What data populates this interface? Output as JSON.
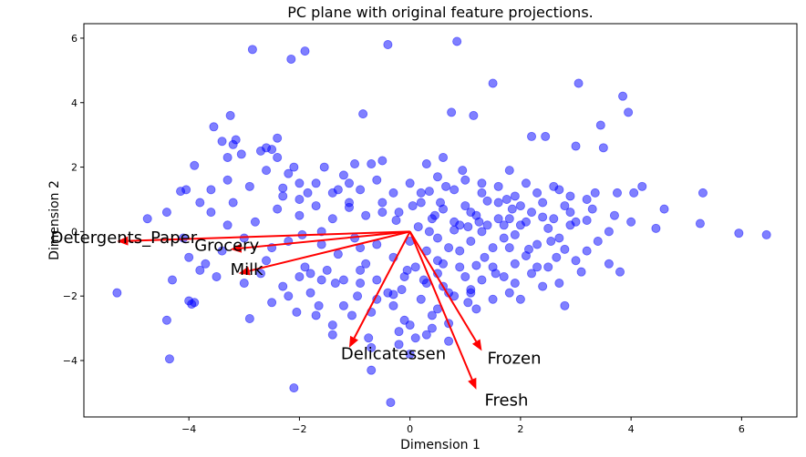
{
  "chart_data": {
    "type": "scatter",
    "title": "PC plane with original feature projections.",
    "xlabel": "Dimension 1",
    "ylabel": "Dimension 2",
    "xlim": [
      -5.9,
      7.0
    ],
    "ylim": [
      -5.75,
      6.45
    ],
    "xticks": [
      -4,
      -2,
      0,
      2,
      4,
      6
    ],
    "yticks": [
      -4,
      -2,
      0,
      2,
      4,
      6
    ],
    "grid": false,
    "legend": "none",
    "point_color": "#0000ff",
    "arrow_color": "#ff0000",
    "points": [
      [
        -5.3,
        -1.9
      ],
      [
        -4.4,
        -2.75
      ],
      [
        -4.35,
        -3.95
      ],
      [
        -4.3,
        -1.5
      ],
      [
        -4.15,
        1.25
      ],
      [
        -4.05,
        1.3
      ],
      [
        -4.0,
        -2.15
      ],
      [
        -3.95,
        -2.25
      ],
      [
        -3.9,
        -2.2
      ],
      [
        -3.9,
        2.05
      ],
      [
        -3.55,
        3.25
      ],
      [
        -3.4,
        2.8
      ],
      [
        -3.3,
        2.3
      ],
      [
        -3.25,
        3.6
      ],
      [
        -3.2,
        2.7
      ],
      [
        -3.15,
        2.85
      ],
      [
        -3.05,
        2.4
      ],
      [
        -2.85,
        5.65
      ],
      [
        -2.7,
        2.5
      ],
      [
        -2.6,
        2.6
      ],
      [
        -2.5,
        2.55
      ],
      [
        -2.4,
        2.3
      ],
      [
        -2.4,
        2.9
      ],
      [
        -2.3,
        1.35
      ],
      [
        -2.2,
        1.8
      ],
      [
        -2.15,
        5.35
      ],
      [
        -2.1,
        -4.85
      ],
      [
        -2.05,
        -2.5
      ],
      [
        -2.0,
        1.5
      ],
      [
        -1.95,
        -0.1
      ],
      [
        -1.9,
        5.6
      ],
      [
        -1.85,
        1.2
      ],
      [
        -1.8,
        -1.3
      ],
      [
        -1.65,
        -2.3
      ],
      [
        -1.6,
        -1.5
      ],
      [
        -1.55,
        2.0
      ],
      [
        -1.4,
        -3.2
      ],
      [
        -1.35,
        -1.6
      ],
      [
        -1.3,
        1.3
      ],
      [
        -1.2,
        1.75
      ],
      [
        -1.1,
        0.75
      ],
      [
        -1.05,
        -2.6
      ],
      [
        -0.95,
        -2.0
      ],
      [
        -0.85,
        3.65
      ],
      [
        -0.8,
        -1.0
      ],
      [
        -0.75,
        -3.3
      ],
      [
        -0.7,
        -4.3
      ],
      [
        -0.7,
        2.1
      ],
      [
        -0.6,
        -2.1
      ],
      [
        -0.5,
        0.6
      ],
      [
        -0.4,
        5.8
      ],
      [
        -0.35,
        -5.3
      ],
      [
        -0.3,
        -1.95
      ],
      [
        -0.25,
        0.35
      ],
      [
        -0.2,
        -3.1
      ],
      [
        -0.15,
        -1.8
      ],
      [
        -0.1,
        -2.75
      ],
      [
        -0.05,
        -1.2
      ],
      [
        0.0,
        -2.9
      ],
      [
        0.05,
        0.8
      ],
      [
        0.1,
        -3.3
      ],
      [
        0.15,
        0.15
      ],
      [
        0.2,
        -2.1
      ],
      [
        0.25,
        -1.5
      ],
      [
        0.3,
        -3.2
      ],
      [
        0.35,
        1.25
      ],
      [
        0.4,
        -2.6
      ],
      [
        0.45,
        0.5
      ],
      [
        0.5,
        -0.9
      ],
      [
        0.55,
        0.9
      ],
      [
        0.6,
        -1.7
      ],
      [
        0.65,
        1.4
      ],
      [
        0.7,
        -2.85
      ],
      [
        0.75,
        3.7
      ],
      [
        0.8,
        0.05
      ],
      [
        0.85,
        5.9
      ],
      [
        0.9,
        -0.6
      ],
      [
        0.95,
        1.9
      ],
      [
        1.0,
        -1.4
      ],
      [
        1.05,
        -2.2
      ],
      [
        1.1,
        0.6
      ],
      [
        1.15,
        3.6
      ],
      [
        1.2,
        -1.05
      ],
      [
        1.25,
        0.3
      ],
      [
        1.3,
        1.5
      ],
      [
        1.35,
        -0.8
      ],
      [
        1.4,
        0.95
      ],
      [
        1.5,
        4.6
      ],
      [
        1.55,
        -1.3
      ],
      [
        1.6,
        0.4
      ],
      [
        1.7,
        -0.2
      ],
      [
        1.75,
        1.0
      ],
      [
        1.8,
        -0.5
      ],
      [
        1.85,
        0.7
      ],
      [
        1.9,
        -1.6
      ],
      [
        2.0,
        0.2
      ],
      [
        2.1,
        -0.75
      ],
      [
        2.2,
        2.95
      ],
      [
        2.3,
        -1.1
      ],
      [
        2.4,
        0.45
      ],
      [
        2.45,
        2.95
      ],
      [
        2.55,
        -0.3
      ],
      [
        2.65,
        -0.8
      ],
      [
        2.7,
        1.3
      ],
      [
        2.8,
        -2.3
      ],
      [
        2.9,
        0.6
      ],
      [
        3.0,
        2.65
      ],
      [
        3.05,
        4.6
      ],
      [
        3.1,
        -1.25
      ],
      [
        3.2,
        0.35
      ],
      [
        3.35,
        1.2
      ],
      [
        3.45,
        3.3
      ],
      [
        3.5,
        2.6
      ],
      [
        3.6,
        0.0
      ],
      [
        3.75,
        1.2
      ],
      [
        3.8,
        -1.25
      ],
      [
        3.85,
        4.2
      ],
      [
        3.95,
        3.7
      ],
      [
        4.05,
        1.2
      ],
      [
        4.2,
        1.4
      ],
      [
        4.45,
        0.1
      ],
      [
        5.25,
        0.25
      ],
      [
        5.3,
        1.2
      ],
      [
        5.95,
        -0.05
      ],
      [
        6.45,
        -0.1
      ],
      [
        -4.75,
        0.4
      ],
      [
        -3.7,
        -1.0
      ],
      [
        -3.4,
        -0.6
      ],
      [
        -3.0,
        -0.2
      ],
      [
        -2.6,
        -0.9
      ],
      [
        -2.2,
        -0.3
      ],
      [
        -1.9,
        -1.1
      ],
      [
        -1.6,
        -0.4
      ],
      [
        -1.3,
        -0.7
      ],
      [
        -1.0,
        -0.2
      ],
      [
        -0.9,
        -1.6
      ],
      [
        -0.6,
        -0.4
      ],
      [
        -0.3,
        -0.8
      ],
      [
        0.0,
        -0.3
      ],
      [
        0.3,
        -0.6
      ],
      [
        0.5,
        -0.2
      ],
      [
        0.7,
        -0.5
      ],
      [
        0.9,
        0.2
      ],
      [
        1.1,
        -0.3
      ],
      [
        1.3,
        0.0
      ],
      [
        1.5,
        -0.5
      ],
      [
        1.7,
        0.2
      ],
      [
        1.9,
        -0.1
      ],
      [
        2.1,
        0.3
      ],
      [
        2.3,
        -0.4
      ],
      [
        2.5,
        0.1
      ],
      [
        2.7,
        -0.2
      ],
      [
        2.9,
        0.2
      ],
      [
        -3.6,
        0.6
      ],
      [
        -3.2,
        0.9
      ],
      [
        -2.8,
        0.3
      ],
      [
        -2.4,
        0.7
      ],
      [
        -2.0,
        0.5
      ],
      [
        -1.7,
        0.8
      ],
      [
        -1.4,
        0.4
      ],
      [
        -1.1,
        0.9
      ],
      [
        -0.8,
        0.5
      ],
      [
        -0.5,
        0.9
      ],
      [
        -0.2,
        0.6
      ],
      [
        0.2,
        0.9
      ],
      [
        0.4,
        0.4
      ],
      [
        0.6,
        0.7
      ],
      [
        0.8,
        0.3
      ],
      [
        1.0,
        0.8
      ],
      [
        1.2,
        0.5
      ],
      [
        1.4,
        0.2
      ],
      [
        1.6,
        0.9
      ],
      [
        1.8,
        0.4
      ],
      [
        2.0,
        0.8
      ],
      [
        2.2,
        0.6
      ],
      [
        2.4,
        0.9
      ],
      [
        2.6,
        0.4
      ],
      [
        2.8,
        0.8
      ],
      [
        3.0,
        0.3
      ],
      [
        3.3,
        0.7
      ],
      [
        3.7,
        0.5
      ],
      [
        4.0,
        0.3
      ],
      [
        -3.0,
        -1.6
      ],
      [
        -2.7,
        -1.3
      ],
      [
        -2.3,
        -1.7
      ],
      [
        -2.0,
        -1.4
      ],
      [
        -1.8,
        -1.9
      ],
      [
        -1.5,
        -1.2
      ],
      [
        -1.2,
        -1.5
      ],
      [
        -0.9,
        -1.2
      ],
      [
        -0.6,
        -1.5
      ],
      [
        -0.4,
        -1.9
      ],
      [
        -0.1,
        -1.4
      ],
      [
        0.1,
        -1.1
      ],
      [
        0.3,
        -1.6
      ],
      [
        0.5,
        -1.3
      ],
      [
        0.7,
        -1.9
      ],
      [
        0.9,
        -1.1
      ],
      [
        1.1,
        -1.8
      ],
      [
        1.3,
        -1.5
      ],
      [
        1.5,
        -1.1
      ],
      [
        1.7,
        -1.4
      ],
      [
        1.9,
        -1.0
      ],
      [
        2.2,
        -1.3
      ],
      [
        2.5,
        -1.1
      ],
      [
        2.7,
        -1.6
      ],
      [
        3.0,
        -0.9
      ],
      [
        3.2,
        -0.6
      ],
      [
        -2.5,
        -2.2
      ],
      [
        -1.7,
        -2.6
      ],
      [
        -1.2,
        -2.3
      ],
      [
        -0.7,
        -2.5
      ],
      [
        -0.3,
        -2.3
      ],
      [
        0.5,
        -2.4
      ],
      [
        0.8,
        -2.0
      ],
      [
        1.2,
        -2.4
      ],
      [
        1.5,
        -2.1
      ],
      [
        1.8,
        -1.9
      ],
      [
        2.0,
        -2.1
      ],
      [
        2.4,
        -1.7
      ],
      [
        -3.3,
        1.6
      ],
      [
        -2.9,
        1.4
      ],
      [
        -2.6,
        1.9
      ],
      [
        -2.3,
        1.1
      ],
      [
        -2.0,
        1.0
      ],
      [
        -1.7,
        1.5
      ],
      [
        -1.4,
        1.2
      ],
      [
        -1.1,
        1.5
      ],
      [
        -0.9,
        1.3
      ],
      [
        -0.6,
        1.6
      ],
      [
        -0.3,
        1.2
      ],
      [
        0.0,
        1.5
      ],
      [
        0.2,
        1.2
      ],
      [
        0.5,
        1.7
      ],
      [
        0.8,
        1.3
      ],
      [
        1.0,
        1.6
      ],
      [
        1.3,
        1.2
      ],
      [
        1.6,
        1.4
      ],
      [
        1.9,
        1.1
      ],
      [
        2.1,
        1.5
      ],
      [
        2.3,
        1.2
      ],
      [
        2.6,
        1.4
      ],
      [
        2.9,
        1.1
      ],
      [
        3.2,
        1.0
      ],
      [
        -2.1,
        2.0
      ],
      [
        -1.0,
        2.1
      ],
      [
        0.3,
        2.1
      ],
      [
        0.6,
        2.3
      ],
      [
        1.8,
        1.9
      ],
      [
        -0.5,
        2.2
      ],
      [
        -3.6,
        1.3
      ],
      [
        -3.8,
        0.9
      ],
      [
        -4.1,
        -0.2
      ],
      [
        -4.0,
        -0.8
      ],
      [
        -3.5,
        -1.4
      ],
      [
        -3.8,
        -1.2
      ],
      [
        -2.9,
        -2.7
      ],
      [
        -2.2,
        -2.0
      ],
      [
        -1.4,
        -2.9
      ],
      [
        -0.7,
        -3.6
      ],
      [
        0.0,
        -3.8
      ],
      [
        0.4,
        -3.0
      ],
      [
        0.7,
        -3.4
      ],
      [
        -0.2,
        -3.5
      ],
      [
        1.1,
        -1.9
      ],
      [
        0.6,
        -1.0
      ],
      [
        -0.9,
        -0.5
      ],
      [
        -2.5,
        -0.5
      ],
      [
        -3.3,
        0.2
      ],
      [
        -4.4,
        0.6
      ],
      [
        -1.6,
        0.0
      ],
      [
        0.35,
        0.0
      ],
      [
        1.05,
        0.15
      ],
      [
        2.15,
        -0.55
      ],
      [
        2.8,
        -0.55
      ],
      [
        3.4,
        -0.3
      ],
      [
        3.6,
        -1.0
      ],
      [
        4.6,
        0.7
      ]
    ],
    "vectors": [
      {
        "label": "Fresh",
        "x": 1.2,
        "y": -4.9,
        "label_x": 1.35,
        "label_y": -5.4
      },
      {
        "label": "Milk",
        "x": -3.1,
        "y": -1.3,
        "label_x": -3.25,
        "label_y": -1.35
      },
      {
        "label": "Grocery",
        "x": -3.25,
        "y": -0.55,
        "label_x": -3.9,
        "label_y": -0.6
      },
      {
        "label": "Frozen",
        "x": 1.3,
        "y": -3.7,
        "label_x": 1.4,
        "label_y": -4.1
      },
      {
        "label": "Detergents_Paper",
        "x": -5.3,
        "y": -0.3,
        "label_x": -6.5,
        "label_y": -0.35
      },
      {
        "label": "Delicatessen",
        "x": -1.1,
        "y": -3.6,
        "label_x": -1.25,
        "label_y": -3.95
      }
    ]
  }
}
